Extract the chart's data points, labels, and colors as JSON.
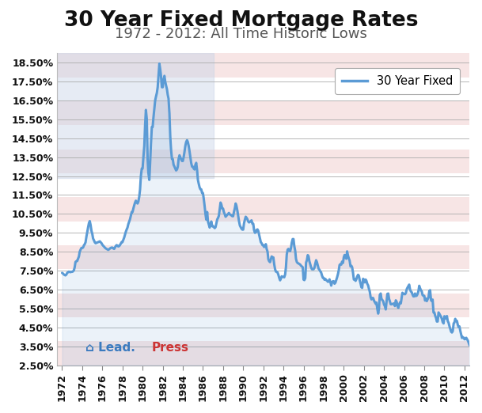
{
  "title": "30 Year Fixed Mortgage Rates",
  "subtitle": "1972 - 2012: All Time Historic Lows",
  "legend_label": "30 Year Fixed",
  "line_color": "#5b9bd5",
  "background_color": "#ffffff",
  "stripe_color_red": "#f2d0d0",
  "stripe_color_white": "#ffffff",
  "canton_color": "#c8d4e8",
  "ylim": [
    2.5,
    19.0
  ],
  "ytick_vals": [
    2.5,
    3.5,
    4.5,
    5.5,
    6.5,
    7.5,
    8.5,
    9.5,
    10.5,
    11.5,
    12.5,
    13.5,
    14.5,
    15.5,
    16.5,
    17.5,
    18.5
  ],
  "xtick_years": [
    1972,
    1974,
    1976,
    1978,
    1980,
    1982,
    1984,
    1986,
    1988,
    1990,
    1992,
    1994,
    1996,
    1998,
    2000,
    2002,
    2004,
    2006,
    2008,
    2010,
    2012
  ],
  "xlim_min": 1971.5,
  "xlim_max": 2012.5,
  "data": {
    "1972.0": 7.38,
    "1972.08": 7.35,
    "1972.17": 7.3,
    "1972.25": 7.27,
    "1972.33": 7.25,
    "1972.42": 7.29,
    "1972.5": 7.38,
    "1972.58": 7.41,
    "1972.67": 7.45,
    "1972.75": 7.43,
    "1972.83": 7.42,
    "1972.92": 7.44,
    "1973.0": 7.44,
    "1973.08": 7.46,
    "1973.17": 7.52,
    "1973.25": 7.68,
    "1973.33": 7.96,
    "1973.42": 8.0,
    "1973.5": 8.01,
    "1973.58": 8.12,
    "1973.67": 8.25,
    "1973.75": 8.5,
    "1973.83": 8.6,
    "1973.92": 8.7,
    "1974.0": 8.7,
    "1974.08": 8.72,
    "1974.17": 8.84,
    "1974.25": 8.9,
    "1974.33": 9.0,
    "1974.42": 9.31,
    "1974.5": 9.55,
    "1974.58": 9.78,
    "1974.67": 10.02,
    "1974.75": 10.12,
    "1974.83": 9.92,
    "1974.92": 9.6,
    "1975.0": 9.45,
    "1975.08": 9.2,
    "1975.17": 9.1,
    "1975.25": 9.0,
    "1975.33": 8.95,
    "1975.42": 8.97,
    "1975.5": 8.99,
    "1975.58": 9.01,
    "1975.67": 9.03,
    "1975.75": 9.05,
    "1975.83": 9.0,
    "1975.92": 8.95,
    "1976.0": 8.87,
    "1976.08": 8.82,
    "1976.17": 8.77,
    "1976.25": 8.72,
    "1976.33": 8.68,
    "1976.42": 8.65,
    "1976.5": 8.62,
    "1976.58": 8.6,
    "1976.67": 8.63,
    "1976.75": 8.67,
    "1976.83": 8.7,
    "1976.92": 8.72,
    "1977.0": 8.72,
    "1977.08": 8.68,
    "1977.17": 8.65,
    "1977.25": 8.72,
    "1977.33": 8.8,
    "1977.42": 8.85,
    "1977.5": 8.82,
    "1977.58": 8.78,
    "1977.67": 8.8,
    "1977.75": 8.85,
    "1977.83": 8.93,
    "1977.92": 9.01,
    "1978.0": 9.01,
    "1978.08": 9.12,
    "1978.17": 9.25,
    "1978.25": 9.4,
    "1978.33": 9.55,
    "1978.42": 9.68,
    "1978.5": 9.78,
    "1978.58": 9.96,
    "1978.67": 10.1,
    "1978.75": 10.22,
    "1978.83": 10.4,
    "1978.92": 10.6,
    "1979.0": 10.6,
    "1979.08": 10.78,
    "1979.17": 10.96,
    "1979.25": 11.1,
    "1979.33": 11.2,
    "1979.42": 11.1,
    "1979.5": 11.05,
    "1979.58": 11.15,
    "1979.67": 11.42,
    "1979.75": 11.8,
    "1979.83": 12.5,
    "1979.92": 12.9,
    "1980.0": 12.9,
    "1980.08": 13.5,
    "1980.17": 14.1,
    "1980.25": 15.2,
    "1980.33": 16.0,
    "1980.42": 15.5,
    "1980.5": 13.4,
    "1980.58": 12.66,
    "1980.67": 12.3,
    "1980.75": 13.2,
    "1980.83": 14.2,
    "1980.92": 15.1,
    "1981.0": 15.1,
    "1981.08": 15.6,
    "1981.17": 16.1,
    "1981.25": 16.5,
    "1981.33": 16.7,
    "1981.42": 16.9,
    "1981.5": 17.2,
    "1981.58": 17.78,
    "1981.67": 18.45,
    "1981.75": 18.16,
    "1981.83": 17.8,
    "1981.92": 17.2,
    "1982.0": 17.2,
    "1982.08": 17.6,
    "1982.17": 17.8,
    "1982.25": 17.5,
    "1982.33": 17.3,
    "1982.42": 17.1,
    "1982.5": 16.8,
    "1982.58": 16.6,
    "1982.67": 15.8,
    "1982.75": 14.6,
    "1982.83": 13.9,
    "1982.92": 13.4,
    "1983.0": 13.4,
    "1983.08": 13.1,
    "1983.17": 13.0,
    "1983.25": 12.9,
    "1983.33": 12.8,
    "1983.42": 12.85,
    "1983.5": 13.0,
    "1983.58": 13.4,
    "1983.67": 13.6,
    "1983.75": 13.5,
    "1983.83": 13.4,
    "1983.92": 13.3,
    "1984.0": 13.3,
    "1984.08": 13.5,
    "1984.17": 13.8,
    "1984.25": 14.1,
    "1984.33": 14.3,
    "1984.42": 14.4,
    "1984.5": 14.3,
    "1984.58": 14.1,
    "1984.67": 13.8,
    "1984.75": 13.5,
    "1984.83": 13.2,
    "1984.92": 13.0,
    "1985.0": 13.0,
    "1985.08": 12.9,
    "1985.17": 12.85,
    "1985.25": 13.1,
    "1985.33": 13.2,
    "1985.42": 12.8,
    "1985.5": 12.3,
    "1985.58": 12.1,
    "1985.67": 11.9,
    "1985.75": 11.8,
    "1985.83": 11.8,
    "1985.92": 11.6,
    "1986.0": 11.6,
    "1986.08": 11.3,
    "1986.17": 10.9,
    "1986.25": 10.5,
    "1986.33": 10.2,
    "1986.42": 10.6,
    "1986.5": 10.1,
    "1986.58": 9.95,
    "1986.67": 9.78,
    "1986.75": 9.95,
    "1986.83": 10.1,
    "1986.92": 9.85,
    "1987.0": 9.85,
    "1987.08": 9.8,
    "1987.17": 9.75,
    "1987.25": 9.8,
    "1987.33": 10.0,
    "1987.42": 10.21,
    "1987.5": 10.29,
    "1987.58": 10.4,
    "1987.67": 10.78,
    "1987.75": 11.1,
    "1987.83": 11.0,
    "1987.92": 10.78,
    "1988.0": 10.78,
    "1988.08": 10.6,
    "1988.17": 10.48,
    "1988.25": 10.35,
    "1988.33": 10.4,
    "1988.42": 10.46,
    "1988.5": 10.5,
    "1988.58": 10.55,
    "1988.67": 10.48,
    "1988.75": 10.45,
    "1988.83": 10.42,
    "1988.92": 10.38,
    "1989.0": 10.38,
    "1989.08": 10.6,
    "1989.17": 10.8,
    "1989.25": 11.05,
    "1989.33": 10.93,
    "1989.42": 10.68,
    "1989.5": 10.41,
    "1989.58": 10.13,
    "1989.67": 9.89,
    "1989.75": 9.8,
    "1989.83": 9.72,
    "1989.92": 9.67,
    "1990.0": 9.67,
    "1990.08": 10.0,
    "1990.17": 10.2,
    "1990.25": 10.35,
    "1990.33": 10.3,
    "1990.42": 10.22,
    "1990.5": 10.1,
    "1990.58": 10.05,
    "1990.67": 10.08,
    "1990.75": 10.12,
    "1990.83": 10.16,
    "1990.92": 9.98,
    "1991.0": 9.98,
    "1991.08": 9.65,
    "1991.17": 9.5,
    "1991.25": 9.52,
    "1991.33": 9.65,
    "1991.42": 9.68,
    "1991.5": 9.6,
    "1991.58": 9.42,
    "1991.67": 9.2,
    "1991.75": 9.01,
    "1991.83": 8.95,
    "1991.92": 8.85,
    "1992.0": 8.85,
    "1992.08": 8.75,
    "1992.17": 8.8,
    "1992.25": 8.9,
    "1992.33": 8.65,
    "1992.42": 8.51,
    "1992.5": 8.1,
    "1992.58": 8.0,
    "1992.67": 7.95,
    "1992.75": 8.1,
    "1992.83": 8.25,
    "1992.92": 8.2,
    "1993.0": 8.2,
    "1993.08": 7.85,
    "1993.17": 7.58,
    "1993.25": 7.45,
    "1993.33": 7.44,
    "1993.42": 7.4,
    "1993.5": 7.28,
    "1993.58": 7.12,
    "1993.67": 6.99,
    "1993.75": 7.1,
    "1993.83": 7.2,
    "1993.92": 7.17,
    "1994.0": 7.17,
    "1994.08": 7.15,
    "1994.17": 7.3,
    "1994.25": 7.68,
    "1994.33": 8.35,
    "1994.42": 8.61,
    "1994.5": 8.65,
    "1994.58": 8.58,
    "1994.67": 8.53,
    "1994.75": 8.7,
    "1994.83": 8.98,
    "1994.92": 9.17,
    "1995.0": 9.17,
    "1995.08": 8.8,
    "1995.17": 8.55,
    "1995.25": 8.12,
    "1995.33": 7.96,
    "1995.42": 7.9,
    "1995.5": 7.88,
    "1995.58": 7.85,
    "1995.67": 7.82,
    "1995.75": 7.76,
    "1995.83": 7.72,
    "1995.92": 7.68,
    "1996.0": 7.03,
    "1996.08": 7.0,
    "1996.17": 7.1,
    "1996.25": 7.93,
    "1996.33": 8.05,
    "1996.42": 8.32,
    "1996.5": 8.25,
    "1996.58": 8.0,
    "1996.67": 7.83,
    "1996.75": 7.68,
    "1996.83": 7.58,
    "1996.92": 7.58,
    "1997.0": 7.58,
    "1997.08": 7.65,
    "1997.17": 7.88,
    "1997.25": 8.05,
    "1997.33": 7.95,
    "1997.42": 7.76,
    "1997.5": 7.6,
    "1997.58": 7.55,
    "1997.67": 7.46,
    "1997.75": 7.4,
    "1997.83": 7.25,
    "1997.92": 7.12,
    "1998.0": 7.12,
    "1998.08": 7.02,
    "1998.17": 7.06,
    "1998.25": 7.0,
    "1998.33": 6.97,
    "1998.42": 6.91,
    "1998.5": 6.92,
    "1998.58": 7.04,
    "1998.67": 6.9,
    "1998.75": 6.71,
    "1998.83": 6.87,
    "1998.92": 6.94,
    "1999.0": 6.94,
    "1999.08": 6.81,
    "1999.17": 6.87,
    "1999.25": 7.0,
    "1999.33": 7.14,
    "1999.42": 7.32,
    "1999.5": 7.52,
    "1999.58": 7.8,
    "1999.67": 7.85,
    "1999.75": 7.82,
    "1999.83": 7.98,
    "1999.92": 7.91,
    "2000.0": 8.21,
    "2000.08": 8.33,
    "2000.17": 8.24,
    "2000.25": 8.13,
    "2000.33": 8.52,
    "2000.42": 8.29,
    "2000.5": 8.15,
    "2000.58": 8.03,
    "2000.67": 7.72,
    "2000.75": 7.76,
    "2000.83": 7.68,
    "2000.92": 7.38,
    "2001.0": 7.03,
    "2001.08": 7.05,
    "2001.17": 6.96,
    "2001.25": 7.05,
    "2001.33": 7.19,
    "2001.42": 7.28,
    "2001.5": 7.23,
    "2001.58": 7.0,
    "2001.67": 6.82,
    "2001.75": 6.62,
    "2001.83": 6.59,
    "2001.92": 7.07,
    "2002.0": 7.0,
    "2002.08": 6.88,
    "2002.17": 7.03,
    "2002.25": 6.96,
    "2002.33": 6.81,
    "2002.42": 6.72,
    "2002.5": 6.54,
    "2002.58": 6.4,
    "2002.67": 6.09,
    "2002.75": 5.98,
    "2002.83": 6.06,
    "2002.92": 6.05,
    "2003.0": 5.92,
    "2003.08": 5.84,
    "2003.17": 5.75,
    "2003.25": 5.81,
    "2003.33": 5.48,
    "2003.42": 5.23,
    "2003.5": 5.52,
    "2003.58": 6.22,
    "2003.67": 6.29,
    "2003.75": 5.99,
    "2003.83": 5.95,
    "2003.92": 5.88,
    "2004.0": 5.71,
    "2004.08": 5.63,
    "2004.17": 5.45,
    "2004.25": 5.84,
    "2004.33": 6.27,
    "2004.42": 6.29,
    "2004.5": 6.01,
    "2004.58": 5.87,
    "2004.67": 5.72,
    "2004.75": 5.72,
    "2004.83": 5.74,
    "2004.92": 5.75,
    "2005.0": 5.77,
    "2005.08": 5.63,
    "2005.17": 5.93,
    "2005.25": 5.86,
    "2005.33": 5.65,
    "2005.42": 5.53,
    "2005.5": 5.7,
    "2005.58": 5.82,
    "2005.67": 5.77,
    "2005.75": 6.07,
    "2005.83": 6.33,
    "2005.92": 6.27,
    "2006.0": 6.27,
    "2006.08": 6.25,
    "2006.17": 6.32,
    "2006.25": 6.51,
    "2006.33": 6.6,
    "2006.42": 6.68,
    "2006.5": 6.76,
    "2006.58": 6.52,
    "2006.67": 6.4,
    "2006.75": 6.36,
    "2006.83": 6.24,
    "2006.92": 6.14,
    "2007.0": 6.14,
    "2007.08": 6.29,
    "2007.17": 6.16,
    "2007.25": 6.18,
    "2007.33": 6.26,
    "2007.42": 6.42,
    "2007.5": 6.7,
    "2007.58": 6.57,
    "2007.67": 6.47,
    "2007.75": 6.4,
    "2007.83": 6.21,
    "2007.92": 6.17,
    "2008.0": 6.17,
    "2008.08": 5.92,
    "2008.17": 6.02,
    "2008.25": 5.89,
    "2008.33": 5.98,
    "2008.42": 6.09,
    "2008.5": 6.43,
    "2008.58": 6.47,
    "2008.67": 5.94,
    "2008.75": 5.89,
    "2008.83": 5.97,
    "2008.92": 5.29,
    "2009.0": 5.29,
    "2009.08": 5.13,
    "2009.17": 5.0,
    "2009.25": 4.81,
    "2009.33": 4.81,
    "2009.42": 5.29,
    "2009.5": 5.22,
    "2009.58": 5.14,
    "2009.67": 5.06,
    "2009.75": 4.95,
    "2009.83": 4.78,
    "2009.92": 4.71,
    "2010.0": 5.09,
    "2010.08": 5.05,
    "2010.17": 4.97,
    "2010.25": 5.1,
    "2010.33": 4.84,
    "2010.42": 4.74,
    "2010.5": 4.57,
    "2010.58": 4.43,
    "2010.67": 4.27,
    "2010.75": 4.23,
    "2010.83": 4.3,
    "2010.92": 4.71,
    "2011.0": 4.76,
    "2011.08": 4.95,
    "2011.17": 4.84,
    "2011.25": 4.84,
    "2011.33": 4.64,
    "2011.42": 4.51,
    "2011.5": 4.55,
    "2011.58": 4.32,
    "2011.67": 4.11,
    "2011.75": 3.94,
    "2011.83": 3.99,
    "2011.92": 3.95,
    "2012.0": 3.87,
    "2012.08": 3.89,
    "2012.17": 3.95,
    "2012.25": 3.88,
    "2012.33": 3.8,
    "2012.42": 3.68,
    "2012.5": 3.55,
    "2012.58": 3.6,
    "2012.67": 3.55,
    "2012.75": 3.47,
    "2012.83": 3.35,
    "2012.92": 3.35
  }
}
